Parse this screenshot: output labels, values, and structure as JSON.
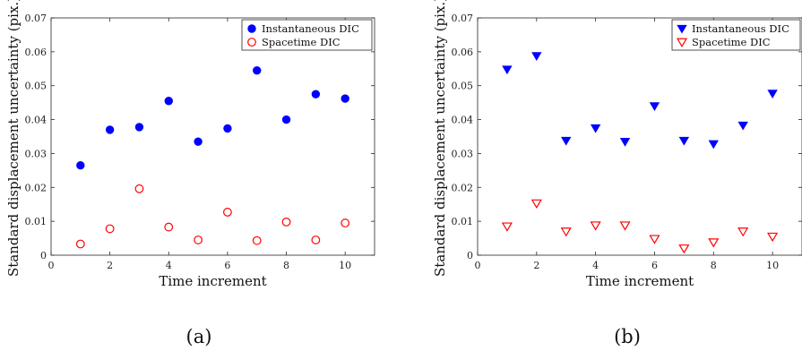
{
  "chart_data": [
    {
      "type": "scatter",
      "caption": "(a)",
      "xlabel": "Time increment",
      "ylabel": "Standard displacement uncertainty (pix.)",
      "xlim": [
        0,
        11
      ],
      "ylim": [
        0,
        0.07
      ],
      "xticks": [
        "0",
        "2",
        "4",
        "6",
        "8",
        "10"
      ],
      "yticks": [
        "0",
        "0.01",
        "0.02",
        "0.03",
        "0.04",
        "0.05",
        "0.06",
        "0.07"
      ],
      "grid": false,
      "legend_position": "top-right",
      "x": [
        1,
        2,
        3,
        4,
        5,
        6,
        7,
        8,
        9,
        10
      ],
      "series": [
        {
          "name": "Instantaneous DIC",
          "marker": "filled-circle",
          "color": "#0000ff",
          "values": [
            0.0265,
            0.037,
            0.0378,
            0.0455,
            0.0335,
            0.0374,
            0.0545,
            0.04,
            0.0475,
            0.0462
          ]
        },
        {
          "name": "Spacetime DIC",
          "marker": "open-circle",
          "color": "#ff0000",
          "values": [
            0.0033,
            0.0078,
            0.0196,
            0.0083,
            0.0045,
            0.0127,
            0.0043,
            0.0098,
            0.0045,
            0.0095
          ]
        }
      ]
    },
    {
      "type": "scatter",
      "caption": "(b)",
      "xlabel": "Time increment",
      "ylabel": "Standard displacement uncertainty (pix.)",
      "xlim": [
        0,
        11
      ],
      "ylim": [
        0,
        0.07
      ],
      "xticks": [
        "0",
        "2",
        "4",
        "6",
        "8",
        "10"
      ],
      "yticks": [
        "0",
        "0.01",
        "0.02",
        "0.03",
        "0.04",
        "0.05",
        "0.06",
        "0.07"
      ],
      "grid": false,
      "legend_position": "top-right",
      "x": [
        1,
        2,
        3,
        4,
        5,
        6,
        7,
        8,
        9,
        10
      ],
      "series": [
        {
          "name": "Instantaneous DIC",
          "marker": "filled-triangle-down",
          "color": "#0000ff",
          "values": [
            0.0548,
            0.0588,
            0.0338,
            0.0375,
            0.0335,
            0.044,
            0.0338,
            0.0328,
            0.0383,
            0.0477
          ]
        },
        {
          "name": "Spacetime DIC",
          "marker": "open-triangle-down",
          "color": "#ff0000",
          "values": [
            0.0085,
            0.0153,
            0.007,
            0.0088,
            0.0088,
            0.0048,
            0.002,
            0.0038,
            0.007,
            0.0055
          ]
        }
      ]
    }
  ]
}
